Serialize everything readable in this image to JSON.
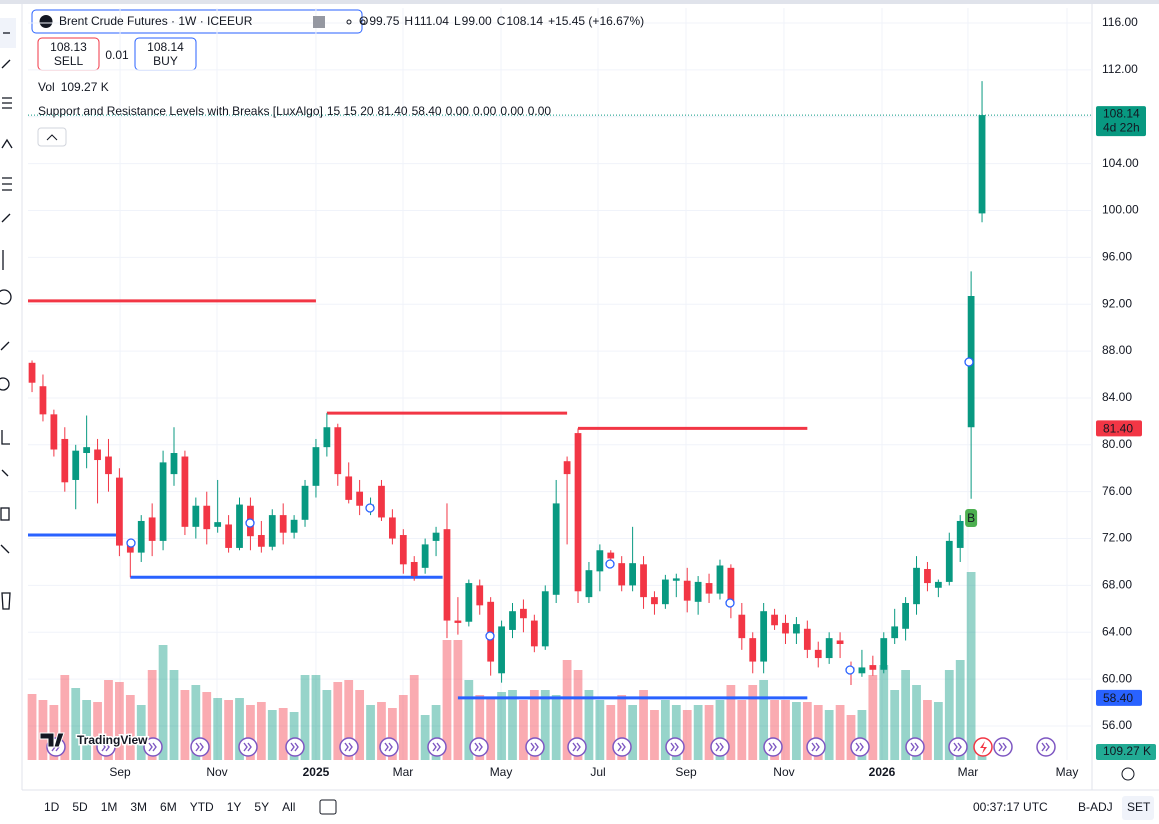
{
  "header": {
    "title": "Brent Crude Futures · 1W · ICEEUR",
    "ohlc": [
      {
        "label": "O",
        "value": "99.75"
      },
      {
        "label": "H",
        "value": "111.04"
      },
      {
        "label": "L",
        "value": "99.00"
      },
      {
        "label": "C",
        "value": "108.14"
      }
    ],
    "change": "+15.45 (+16.67%)",
    "sell": {
      "price": "108.13",
      "label": "SELL"
    },
    "spread": "0.01",
    "buy": {
      "price": "108.14",
      "label": "BUY"
    },
    "volume": {
      "label": "Vol",
      "value": "109.27 K"
    },
    "indicator": {
      "name": "Support and Resistance Levels with Breaks [LuxAlgo]",
      "params": "15 15 20",
      "values": [
        {
          "text": "81.40",
          "color": "#f23645"
        },
        {
          "text": "58.40",
          "color": "#2962ff"
        },
        {
          "text": "0.00",
          "color": "#f23645"
        },
        {
          "text": "0.00",
          "color": "#089981"
        },
        {
          "text": "0.00",
          "color": "#089981"
        },
        {
          "text": "0.00",
          "color": "#f23645"
        }
      ]
    }
  },
  "chart_data": {
    "type": "candlestick",
    "up_color": "#089981",
    "down_color": "#f23645",
    "xlim": [
      -0.37,
      97.07
    ],
    "ylim": [
      53.1,
      117.28
    ],
    "xticks": [
      {
        "value": 8.06,
        "label": "Sep"
      },
      {
        "value": 16.94,
        "label": "Nov"
      },
      {
        "value": 26,
        "label": "2025"
      },
      {
        "value": 33.97,
        "label": "Mar"
      },
      {
        "value": 42.95,
        "label": "May"
      },
      {
        "value": 51.83,
        "label": "Jul"
      },
      {
        "value": 59.89,
        "label": "Sep"
      },
      {
        "value": 68.86,
        "label": "Nov"
      },
      {
        "value": 77.84,
        "label": "2026"
      },
      {
        "value": 85.71,
        "label": "Mar"
      },
      {
        "value": 94.78,
        "label": "May"
      }
    ],
    "yticks": [
      {
        "value": 56,
        "label": "56.00"
      },
      {
        "value": 60,
        "label": "60.00"
      },
      {
        "value": 64,
        "label": "64.00"
      },
      {
        "value": 68,
        "label": "68.00"
      },
      {
        "value": 72,
        "label": "72.00"
      },
      {
        "value": 76,
        "label": "76.00"
      },
      {
        "value": 80,
        "label": "80.00"
      },
      {
        "value": 84,
        "label": "84.00"
      },
      {
        "value": 88,
        "label": "88.00"
      },
      {
        "value": 92,
        "label": "92.00"
      },
      {
        "value": 96,
        "label": "96.00"
      },
      {
        "value": 100,
        "label": "100.00"
      },
      {
        "value": 104,
        "label": "104.00"
      },
      {
        "value": 108,
        "label": "108.00"
      },
      {
        "value": 112,
        "label": "112.00"
      },
      {
        "value": 116,
        "label": "116.00"
      }
    ],
    "grid": true,
    "open": [
      87,
      85,
      82.6,
      80.5,
      77,
      79.3,
      79.6,
      79,
      77.2,
      71.5,
      70.8,
      73.8,
      71.8,
      77.5,
      79,
      73,
      74.8,
      73,
      73.2,
      71.2,
      74.8,
      72.3,
      71.3,
      74,
      72.5,
      73.6,
      76.5,
      79.8,
      81.5,
      77.3,
      76,
      74.6,
      76.5,
      73.8,
      72.3,
      70,
      69.5,
      71.8,
      72.8,
      65,
      64.9,
      68,
      66.6,
      60.5,
      64.2,
      66,
      65,
      62.8,
      67.2,
      78.6,
      81,
      67,
      69.2,
      70.8,
      69.9,
      68,
      69.8,
      67,
      66.4,
      68.4,
      68.4,
      66.6,
      68.2,
      67.3,
      69.5,
      65.5,
      63.5,
      61.5,
      65.5,
      64.8,
      63.9,
      64.3,
      62.5,
      61.8,
      63.3,
      61,
      60.5,
      61.2,
      60.8,
      63.5,
      64.3,
      66.4,
      69.4,
      67.8,
      68.3,
      71.2,
      81.5,
      99.75
    ],
    "high": [
      87.2,
      86,
      83,
      81.5,
      80,
      82.5,
      80.5,
      80.5,
      78,
      72,
      74,
      75,
      79.5,
      81.5,
      79.5,
      75.5,
      76,
      77,
      74,
      75.5,
      75.5,
      73.5,
      74.5,
      75,
      74,
      77,
      80.5,
      82.7,
      81.8,
      78.5,
      77,
      75.5,
      77,
      74.5,
      72.8,
      70.5,
      72,
      73,
      75,
      67,
      68.5,
      68.5,
      67,
      65,
      66.5,
      66.8,
      65.5,
      68,
      77,
      79,
      81.4,
      70,
      71.5,
      71,
      70.5,
      73,
      70.5,
      67.5,
      68.9,
      69,
      69.5,
      68.8,
      69,
      70.2,
      69.8,
      66.5,
      64,
      66.5,
      66,
      65.5,
      65.3,
      65,
      63.2,
      64,
      64,
      61.5,
      62.5,
      62,
      64,
      66,
      67,
      70.5,
      70,
      68.5,
      72.5,
      74,
      94.8,
      111.04
    ],
    "low": [
      84.5,
      82,
      79,
      76,
      74.5,
      78,
      75,
      76,
      70.5,
      68.7,
      70,
      70.5,
      71,
      76.5,
      72.3,
      72,
      71.5,
      72.5,
      70.8,
      71,
      71,
      70.8,
      71,
      71.5,
      72,
      73,
      75.5,
      79,
      76.5,
      75,
      74,
      74,
      73.5,
      71.5,
      69,
      68.4,
      69,
      70.5,
      63.5,
      63.8,
      64.5,
      65.5,
      60.3,
      59.7,
      63.5,
      64,
      62.3,
      62.5,
      66.5,
      71.5,
      66.5,
      66.5,
      67.5,
      69.5,
      67.5,
      67.5,
      66,
      65.5,
      66,
      67,
      65.7,
      65.5,
      66.5,
      66.8,
      65.2,
      62.5,
      60.5,
      60.5,
      64.2,
      63,
      63,
      61.8,
      61,
      61.3,
      61.8,
      59.5,
      60.2,
      60.3,
      60.5,
      63,
      63.3,
      65.5,
      67.5,
      67,
      68,
      70,
      75.4,
      99
    ],
    "close": [
      85.3,
      82.6,
      79.6,
      76.8,
      79.5,
      79.8,
      78.7,
      77.5,
      71.4,
      70.8,
      73.5,
      71.8,
      78.5,
      79.3,
      73,
      74.8,
      72.8,
      73.4,
      71.2,
      74.9,
      72.2,
      71.3,
      74,
      72.5,
      73.6,
      76.5,
      79.8,
      81.5,
      77.5,
      75.3,
      74.8,
      74.9,
      73.8,
      72,
      69.8,
      68.8,
      71.5,
      72.5,
      65,
      64.8,
      68.2,
      66.3,
      61.5,
      64.5,
      65.8,
      65.2,
      62.8,
      67.5,
      75,
      77.5,
      67.5,
      69.3,
      71,
      70.3,
      68,
      69.9,
      67,
      66.4,
      68.5,
      68.6,
      66.7,
      68.3,
      67.3,
      69.7,
      66.5,
      63.5,
      61.5,
      65.8,
      64.6,
      63.9,
      64.7,
      62.5,
      61.8,
      63.5,
      63,
      60.8,
      61,
      60.8,
      63.5,
      64.5,
      66.5,
      69.5,
      68.2,
      68.3,
      71.8,
      73.5,
      92.7,
      108.14
    ],
    "volume": [
      924,
      840,
      770,
      1190,
      1008,
      840,
      812,
      1120,
      1092,
      910,
      770,
      1260,
      1610,
      1260,
      980,
      1050,
      952,
      868,
      840,
      868,
      770,
      812,
      700,
      728,
      672,
      1190,
      1190,
      980,
      1092,
      1120,
      980,
      770,
      812,
      728,
      910,
      1190,
      630,
      770,
      1680,
      1680,
      1120,
      910,
      868,
      952,
      980,
      840,
      980,
      980,
      910,
      1400,
      1260,
      980,
      840,
      770,
      910,
      770,
      980,
      700,
      840,
      770,
      700,
      770,
      770,
      840,
      1050,
      840,
      1050,
      1120,
      840,
      840,
      812,
      812,
      770,
      700,
      770,
      630,
      700,
      1190,
      1330,
      980,
      1260,
      1050,
      840,
      812,
      1260,
      1400,
      2632,
      109.27
    ],
    "volume_label": "109.27 K",
    "levels": [
      {
        "value": 92.28,
        "from": -0.37,
        "to": 26,
        "color": "#f23645"
      },
      {
        "value": 82.7,
        "from": 27,
        "to": 49,
        "color": "#f23645"
      },
      {
        "value": 81.4,
        "from": 50,
        "to": 71,
        "color": "#f23645"
      },
      {
        "value": 72.3,
        "from": -0.37,
        "to": 7.9,
        "color": "#2962ff"
      },
      {
        "value": 68.7,
        "from": 9,
        "to": 37.6,
        "color": "#2962ff"
      },
      {
        "value": 58.4,
        "from": 39,
        "to": 71,
        "color": "#2962ff"
      }
    ],
    "last_price": {
      "value": 108.14,
      "label": "108.14",
      "countdown": "4d 22h"
    },
    "price_tags": [
      {
        "value": 81.4,
        "label": "81.40",
        "color": "#f23645"
      },
      {
        "value": 58.4,
        "label": "58.40",
        "color": "#2962ff"
      }
    ],
    "break_labels": [
      {
        "x": 86,
        "y": 73.75,
        "label": "B"
      }
    ],
    "watermark": "TradingView"
  },
  "bottom_bar": {
    "ranges": [
      "1D",
      "5D",
      "1M",
      "3M",
      "6M",
      "YTD",
      "1Y",
      "5Y",
      "All"
    ],
    "clock": "00:37:17 UTC",
    "adjust": "B-ADJ",
    "settings": "SET"
  }
}
